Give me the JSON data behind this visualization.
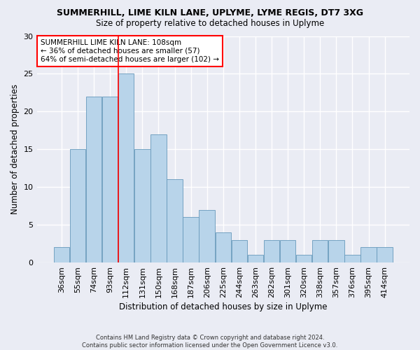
{
  "title1": "SUMMERHILL, LIME KILN LANE, UPLYME, LYME REGIS, DT7 3XG",
  "title2": "Size of property relative to detached houses in Uplyme",
  "xlabel": "Distribution of detached houses by size in Uplyme",
  "ylabel": "Number of detached properties",
  "footnote": "Contains HM Land Registry data © Crown copyright and database right 2024.\nContains public sector information licensed under the Open Government Licence v3.0.",
  "categories": [
    "36sqm",
    "55sqm",
    "74sqm",
    "93sqm",
    "112sqm",
    "131sqm",
    "150sqm",
    "168sqm",
    "187sqm",
    "206sqm",
    "225sqm",
    "244sqm",
    "263sqm",
    "282sqm",
    "301sqm",
    "320sqm",
    "338sqm",
    "357sqm",
    "376sqm",
    "395sqm",
    "414sqm"
  ],
  "values": [
    2,
    15,
    22,
    22,
    25,
    15,
    17,
    11,
    6,
    7,
    4,
    3,
    1,
    3,
    3,
    1,
    3,
    3,
    1,
    2,
    2
  ],
  "bar_color": "#b8d4ea",
  "bar_edge_color": "#6699bb",
  "bg_color": "#eaecf4",
  "grid_color": "#ffffff",
  "annotation_line_index": 4,
  "annotation_line_color": "red",
  "annotation_box_text": "SUMMERHILL LIME KILN LANE: 108sqm\n← 36% of detached houses are smaller (57)\n64% of semi-detached houses are larger (102) →",
  "ylim": [
    0,
    30
  ],
  "yticks": [
    0,
    5,
    10,
    15,
    20,
    25,
    30
  ]
}
